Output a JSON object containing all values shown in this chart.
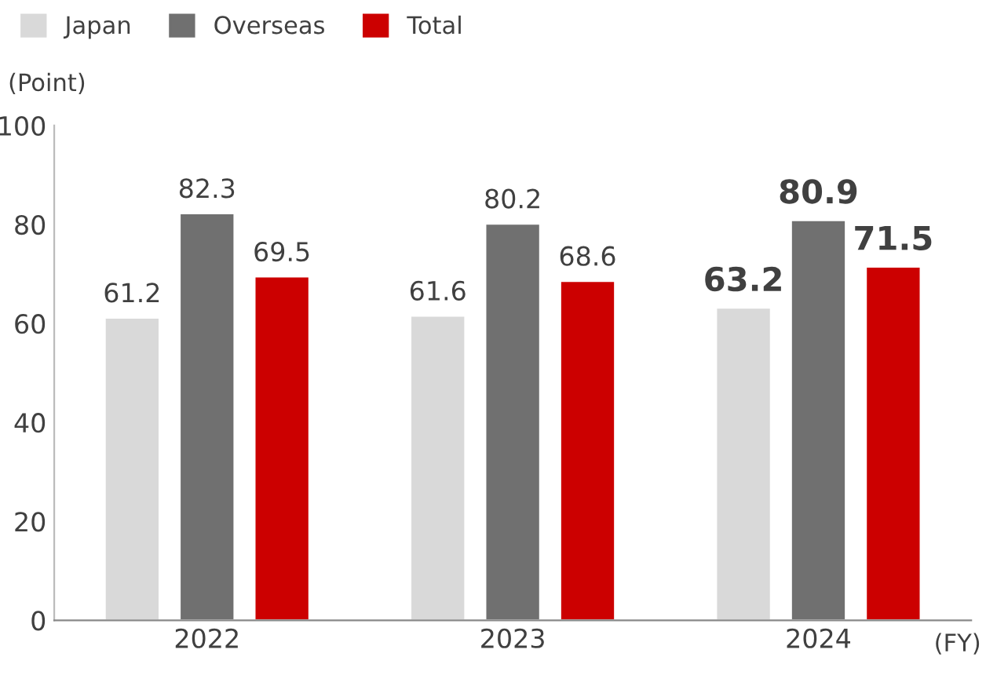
{
  "chart_data": {
    "type": "bar",
    "categories": [
      "2022",
      "2023",
      "2024"
    ],
    "series": [
      {
        "name": "Japan",
        "color": "#d9d9d9",
        "values": [
          61.2,
          61.6,
          63.2
        ]
      },
      {
        "name": "Overseas",
        "color": "#707070",
        "values": [
          82.3,
          80.2,
          80.9
        ]
      },
      {
        "name": "Total",
        "color": "#cc0000",
        "values": [
          69.5,
          68.6,
          71.5
        ]
      }
    ],
    "ylabel": "(Point)",
    "xlabel": "(FY)",
    "ylim": [
      0,
      100
    ],
    "yticks": [
      0,
      20,
      40,
      60,
      80,
      100
    ],
    "data_labels": true,
    "legend": "top left",
    "grid": false
  }
}
